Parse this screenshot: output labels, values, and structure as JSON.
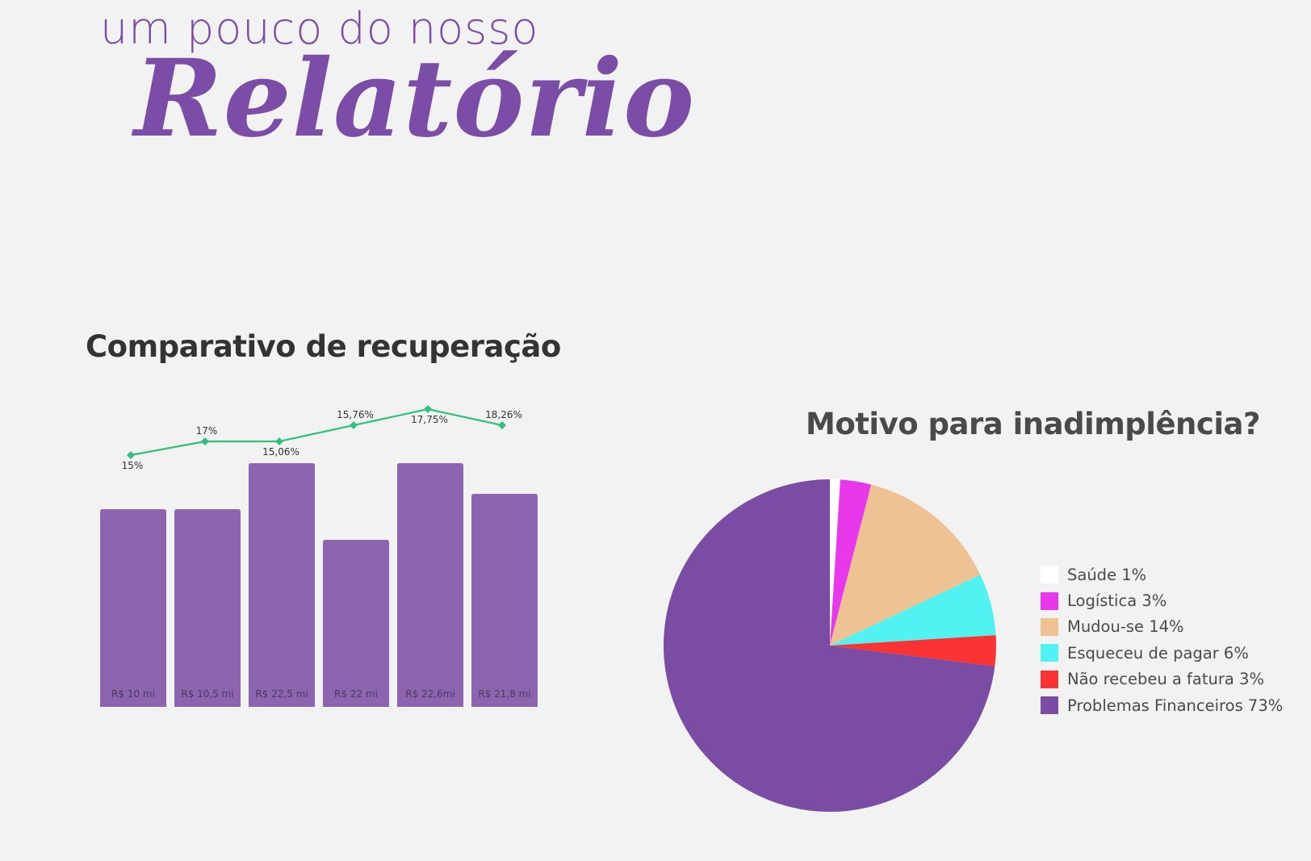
{
  "header": {
    "subtitle": "um pouco do nosso",
    "title": "Relatório"
  },
  "colors": {
    "background": "#f2f2f2",
    "brand_purple": "#7b4da6",
    "bar_fill": "#8c64b0",
    "line_green": "#2ec27e"
  },
  "chart_data": [
    {
      "type": "bar",
      "title": "Comparativo de recuperação",
      "categories": [
        "",
        "",
        "",
        "",
        "",
        ""
      ],
      "series": [
        {
          "name": "",
          "type": "bar",
          "values": [
            10,
            10.5,
            22.5,
            22,
            22.6,
            21.8
          ],
          "labels": [
            "R$ 10 mi",
            "R$ 10,5 mi",
            "R$ 22,5 mi",
            "R$ 22 mi",
            "R$ 22,6mi",
            "R$ 21,8 mi"
          ]
        },
        {
          "name": "",
          "type": "line",
          "values": [
            15,
            17,
            15.06,
            15.76,
            17.75,
            18.26
          ],
          "labels": [
            "15%",
            "17%",
            "15,06%",
            "15,76%",
            "17,75%",
            "18,26%"
          ]
        }
      ],
      "xlabel": "",
      "ylabel": "",
      "grid": false,
      "legend": "none"
    },
    {
      "type": "pie",
      "title": "Motivo para inadimplência?",
      "slices": [
        {
          "label": "Saúde 1%",
          "value": 1,
          "color": "#ffffff"
        },
        {
          "label": "Logística 3%",
          "value": 3,
          "color": "#e838ec"
        },
        {
          "label": "Mudou-se 14%",
          "value": 14,
          "color": "#eec293"
        },
        {
          "label": "Esqueceu de pagar 6%",
          "value": 6,
          "color": "#52f2f2"
        },
        {
          "label": "Não recebeu a fatura 3%",
          "value": 3,
          "color": "#fb3333"
        },
        {
          "label": "Problemas Financeiros 73%",
          "value": 73,
          "color": "#7a4ca4"
        }
      ],
      "legend": "right"
    }
  ]
}
